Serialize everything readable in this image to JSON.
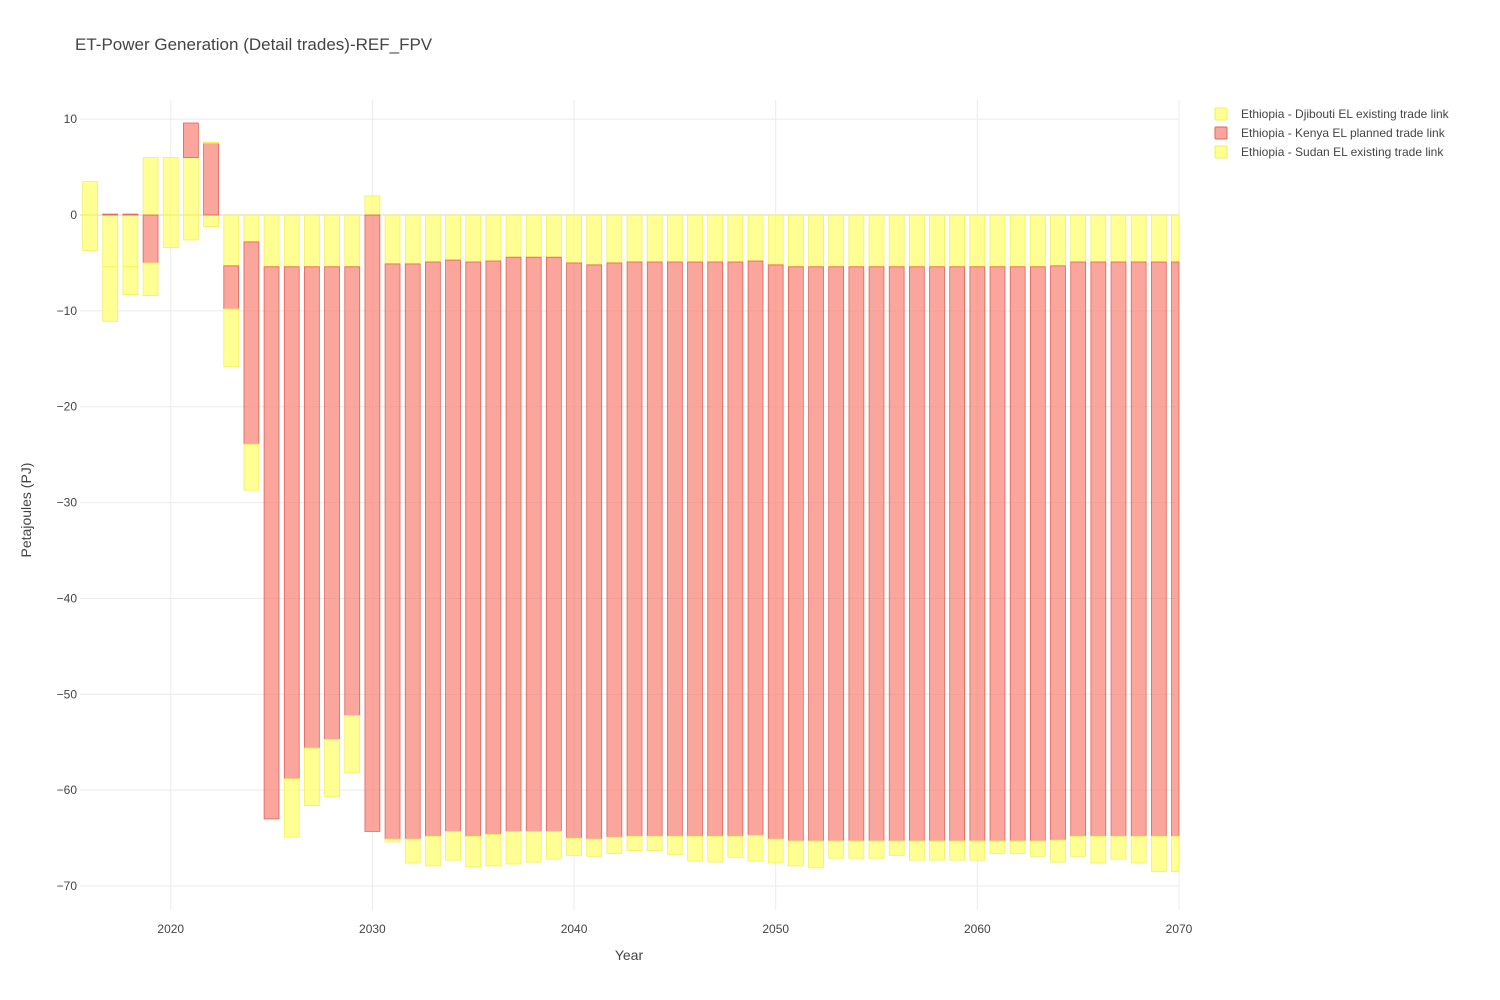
{
  "chart_data": {
    "type": "bar",
    "barmode": "relative",
    "title": "ET-Power Generation (Detail trades)-REF_FPV",
    "xlabel": "Year",
    "ylabel": "Petajoules (PJ)",
    "xlim": [
      2015.5,
      2070
    ],
    "ylim": [
      -72.5,
      12
    ],
    "x_ticks": [
      2020,
      2030,
      2040,
      2050,
      2060,
      2070
    ],
    "y_ticks": [
      10,
      0,
      -10,
      -20,
      -30,
      -40,
      -50,
      -60,
      -70
    ],
    "grid": true,
    "legend_position": "top-right",
    "x": [
      2016,
      2017,
      2018,
      2019,
      2020,
      2021,
      2022,
      2023,
      2024,
      2025,
      2026,
      2027,
      2028,
      2029,
      2030,
      2031,
      2032,
      2033,
      2034,
      2035,
      2036,
      2037,
      2038,
      2039,
      2040,
      2041,
      2042,
      2043,
      2044,
      2045,
      2046,
      2047,
      2048,
      2049,
      2050,
      2051,
      2052,
      2053,
      2054,
      2055,
      2056,
      2057,
      2058,
      2059,
      2060,
      2061,
      2062,
      2063,
      2064,
      2065,
      2066,
      2067,
      2068,
      2069,
      2070
    ],
    "series": [
      {
        "name": "Ethiopia - Djibouti EL existing trade link",
        "color": "#ffff66",
        "values": [
          3.5,
          -5.4,
          -5.4,
          6.0,
          6.0,
          6.0,
          -1.2,
          -5.3,
          -2.8,
          -5.4,
          -5.4,
          -5.4,
          -5.4,
          -5.4,
          2.0,
          -5.1,
          -5.1,
          -4.9,
          -4.7,
          -4.9,
          -4.8,
          -4.4,
          -4.4,
          -4.4,
          -5.0,
          -5.2,
          -5.0,
          -4.9,
          -4.9,
          -4.9,
          -4.9,
          -4.9,
          -4.9,
          -4.8,
          -5.2,
          -5.4,
          -5.4,
          -5.4,
          -5.4,
          -5.4,
          -5.4,
          -5.4,
          -5.4,
          -5.4,
          -5.4,
          -5.4,
          -5.4,
          -5.4,
          -5.3,
          -4.9,
          -4.9,
          -4.9,
          -4.9,
          -4.9,
          -4.9
        ]
      },
      {
        "name": "Ethiopia - Kenya EL planned trade link",
        "color": "#fa8072",
        "values": [
          0,
          0.1,
          0.1,
          -5.0,
          0,
          3.6,
          7.5,
          -4.5,
          -21.1,
          -57.6,
          -53.4,
          -50.2,
          -49.3,
          -46.8,
          -64.3,
          -60.0,
          -60.0,
          -59.9,
          -59.6,
          -59.9,
          -59.8,
          -59.9,
          -59.9,
          -59.9,
          -60.0,
          -59.9,
          -59.9,
          -59.9,
          -59.9,
          -59.9,
          -59.9,
          -59.9,
          -59.9,
          -59.9,
          -59.9,
          -59.9,
          -59.9,
          -59.9,
          -59.9,
          -59.9,
          -59.9,
          -59.9,
          -59.9,
          -59.9,
          -59.9,
          -59.9,
          -59.9,
          -59.9,
          -59.9,
          -59.9,
          -59.9,
          -59.9,
          -59.9,
          -59.9,
          -59.9
        ]
      },
      {
        "name": "Ethiopia - Sudan EL existing trade link",
        "color": "#ffff66",
        "values": [
          -3.7,
          -5.7,
          -2.9,
          -3.4,
          -3.4,
          -2.6,
          0.1,
          -6.0,
          -4.8,
          0,
          -6.1,
          -6.0,
          -6.0,
          -6.0,
          0,
          -0.3,
          -2.5,
          -3.1,
          -3.0,
          -3.2,
          -3.3,
          -3.4,
          -3.2,
          -2.9,
          -1.8,
          -1.8,
          -1.7,
          -1.5,
          -1.5,
          -1.9,
          -2.6,
          -2.7,
          -2.2,
          -2.7,
          -2.5,
          -2.6,
          -2.8,
          -1.8,
          -1.8,
          -1.8,
          -1.5,
          -2.0,
          -2.0,
          -2.0,
          -2.0,
          -1.3,
          -1.3,
          -1.6,
          -2.3,
          -2.1,
          -2.8,
          -2.4,
          -2.8,
          -3.7,
          -3.7
        ]
      }
    ]
  }
}
